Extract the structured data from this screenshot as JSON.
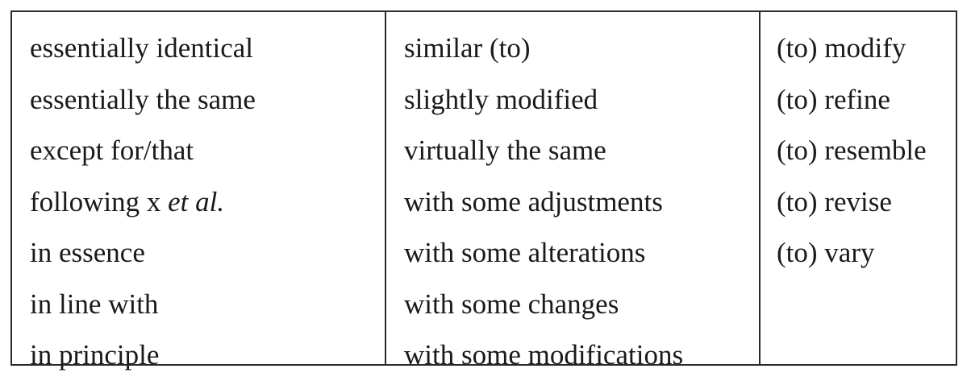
{
  "table": {
    "columns": [
      {
        "items": [
          "essentially identical",
          "essentially the same",
          "except for/that",
          "following x et al.",
          "in essence",
          "in line with",
          "in principle"
        ]
      },
      {
        "items": [
          "similar (to)",
          "slightly modified",
          "virtually the same",
          "with some adjustments",
          "with some alterations",
          "with some changes",
          "with some modifications"
        ]
      },
      {
        "items": [
          "(to) modify",
          "(to) refine",
          "(to) resemble",
          "(to) revise",
          "(to) vary"
        ]
      }
    ],
    "following_prefix": "following x ",
    "following_italic": "et al."
  }
}
